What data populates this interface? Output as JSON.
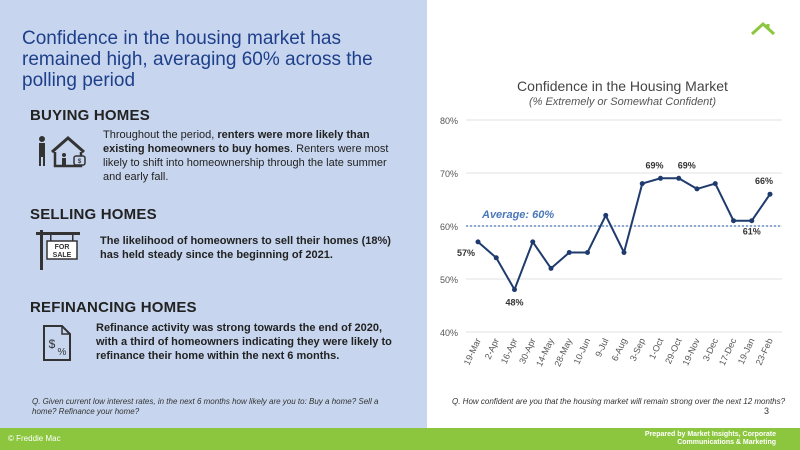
{
  "headline": "Confidence in the housing  market has remained high, averaging 60% across the polling period",
  "sections": [
    {
      "title": "BUYING HOMES",
      "icon": "family-house-icon",
      "text_plain_1": "Throughout the period, ",
      "text_bold": "renters were more likely than existing homeowners to buy homes",
      "text_plain_2": ". Renters were most likely to shift into homeownership through the late summer and early fall."
    },
    {
      "title": "SELLING HOMES",
      "icon": "for-sale-sign-icon",
      "sign_line1": "FOR",
      "sign_line2": "SALE",
      "text_bold": "The likelihood of homeowners to sell their homes (18%) has held steady since the beginning of 2021."
    },
    {
      "title": "REFINANCING HOMES",
      "icon": "dollar-percent-document-icon",
      "text_bold": "Refinance activity was strong towards the end of 2020, with a third of homeowners indicating they were likely to refinance their home within the next 6 months."
    }
  ],
  "footnote_left": "Q. Given current low interest rates, in the next 6 months  how likely are you to:  Buy a home?  Sell a home?   Refinance  your home?",
  "footnote_right": "Q. How confident  are you that the housing market will remain  strong over the next 12 months?",
  "page_number": "3",
  "footer": {
    "copyright": "© Freddie Mac",
    "prepared_by": "Prepared by Market Insights, Corporate Communications & Marketing"
  },
  "colors": {
    "accent_green": "#8cc63f",
    "panel_blue": "#c7d6ee",
    "headline_blue": "#1e3f8a",
    "series_navy": "#1f3b6e",
    "average_blue": "#4a78b8"
  },
  "chart_data": {
    "type": "line",
    "title": "Confidence in the Housing Market",
    "subtitle": "(% Extremely or Somewhat Confident)",
    "categories": [
      "19-Mar",
      "2-Apr",
      "16-Apr",
      "30-Apr",
      "14-May",
      "28-May",
      "10-Jun",
      "9-Jul",
      "6-Aug",
      "3-Sep",
      "1-Oct",
      "29-Oct",
      "19-Nov",
      "3-Dec",
      "17-Dec",
      "19-Jan",
      "23-Feb"
    ],
    "series": [
      {
        "values": [
          57,
          54,
          48,
          57,
          52,
          55,
          55,
          62,
          55,
          68,
          69,
          69,
          67,
          68,
          61,
          61,
          66
        ]
      }
    ],
    "y_ticks": [
      "40%",
      "50%",
      "60%",
      "70%",
      "80%"
    ],
    "ylim": [
      40,
      80
    ],
    "average": {
      "label": "Average: 60%",
      "value": 60
    },
    "data_labels": [
      {
        "index": 0,
        "text": "57%"
      },
      {
        "index": 2,
        "text": "48%"
      },
      {
        "index": 10,
        "text": "69%"
      },
      {
        "index": 11,
        "text": "69%"
      },
      {
        "index": 15,
        "text": "61%"
      },
      {
        "index": 16,
        "text": "66%"
      }
    ]
  }
}
